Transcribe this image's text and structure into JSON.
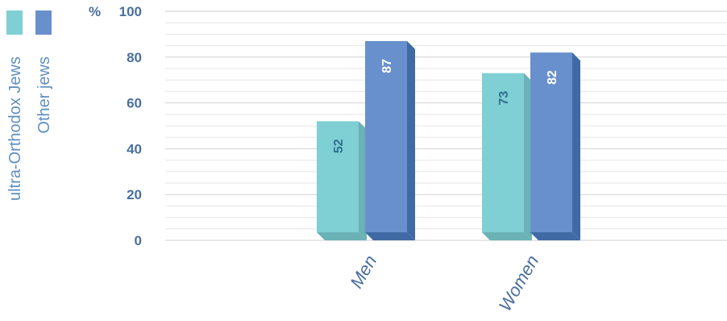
{
  "chart_data": {
    "type": "bar",
    "y_unit": "%",
    "categories": [
      "Men",
      "Women"
    ],
    "series": [
      {
        "name": "ultra-Orthodox Jews",
        "values": [
          52,
          73
        ],
        "color": "#7fd0d4",
        "side_color": "#6ab2b5",
        "label_color": "#2f6f8f"
      },
      {
        "name": "Other jews",
        "values": [
          87,
          82
        ],
        "color": "#6890cc",
        "side_color": "#3f6aa4",
        "label_color": "#ffffff"
      }
    ],
    "ylim": [
      0,
      100
    ],
    "yticks": [
      0,
      20,
      40,
      60,
      80,
      100
    ],
    "grid": true,
    "legend_position": "left, vertical",
    "title": "",
    "xlabel": "",
    "ylabel": ""
  }
}
